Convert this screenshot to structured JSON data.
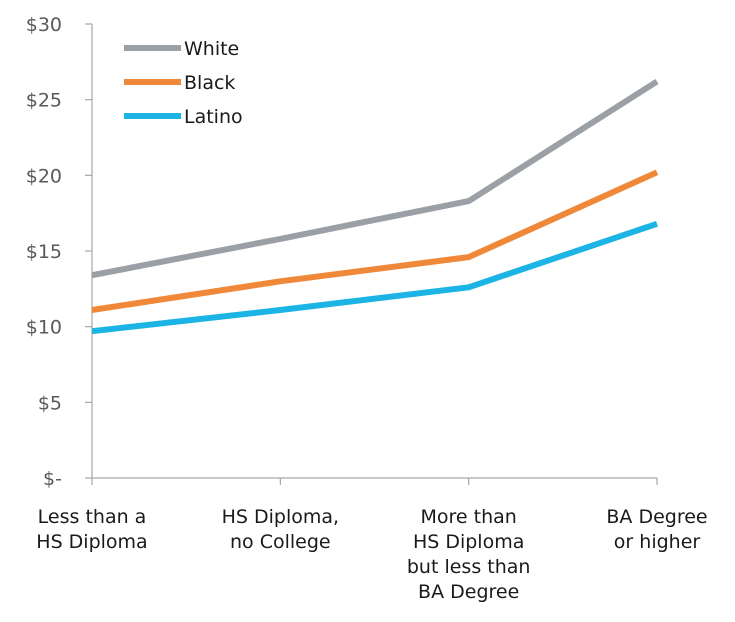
{
  "chart_data": {
    "type": "line",
    "categories": [
      [
        "Less than a",
        "HS Diploma"
      ],
      [
        "HS Diploma,",
        "no College"
      ],
      [
        "More than",
        "HS Diploma",
        "but less than",
        "BA Degree"
      ],
      [
        "BA Degree",
        "or higher"
      ]
    ],
    "series": [
      {
        "name": "White",
        "color": "#9b9fa6",
        "values": [
          13.4,
          15.8,
          18.3,
          26.2
        ]
      },
      {
        "name": "Black",
        "color": "#f0883a",
        "values": [
          11.1,
          13.0,
          14.6,
          20.2
        ]
      },
      {
        "name": "Latino",
        "color": "#1cb4e4",
        "values": [
          9.7,
          11.1,
          12.6,
          16.8
        ]
      }
    ],
    "yticks": [
      {
        "value": 0,
        "label": "$-"
      },
      {
        "value": 5,
        "label": "$5"
      },
      {
        "value": 10,
        "label": "$10"
      },
      {
        "value": 15,
        "label": "$15"
      },
      {
        "value": 20,
        "label": "$20"
      },
      {
        "value": 25,
        "label": "$25"
      },
      {
        "value": 30,
        "label": "$30"
      }
    ],
    "ylim": [
      0,
      30
    ],
    "grid": false,
    "legend_position": "top-left",
    "title": "",
    "xlabel": "",
    "ylabel": ""
  }
}
